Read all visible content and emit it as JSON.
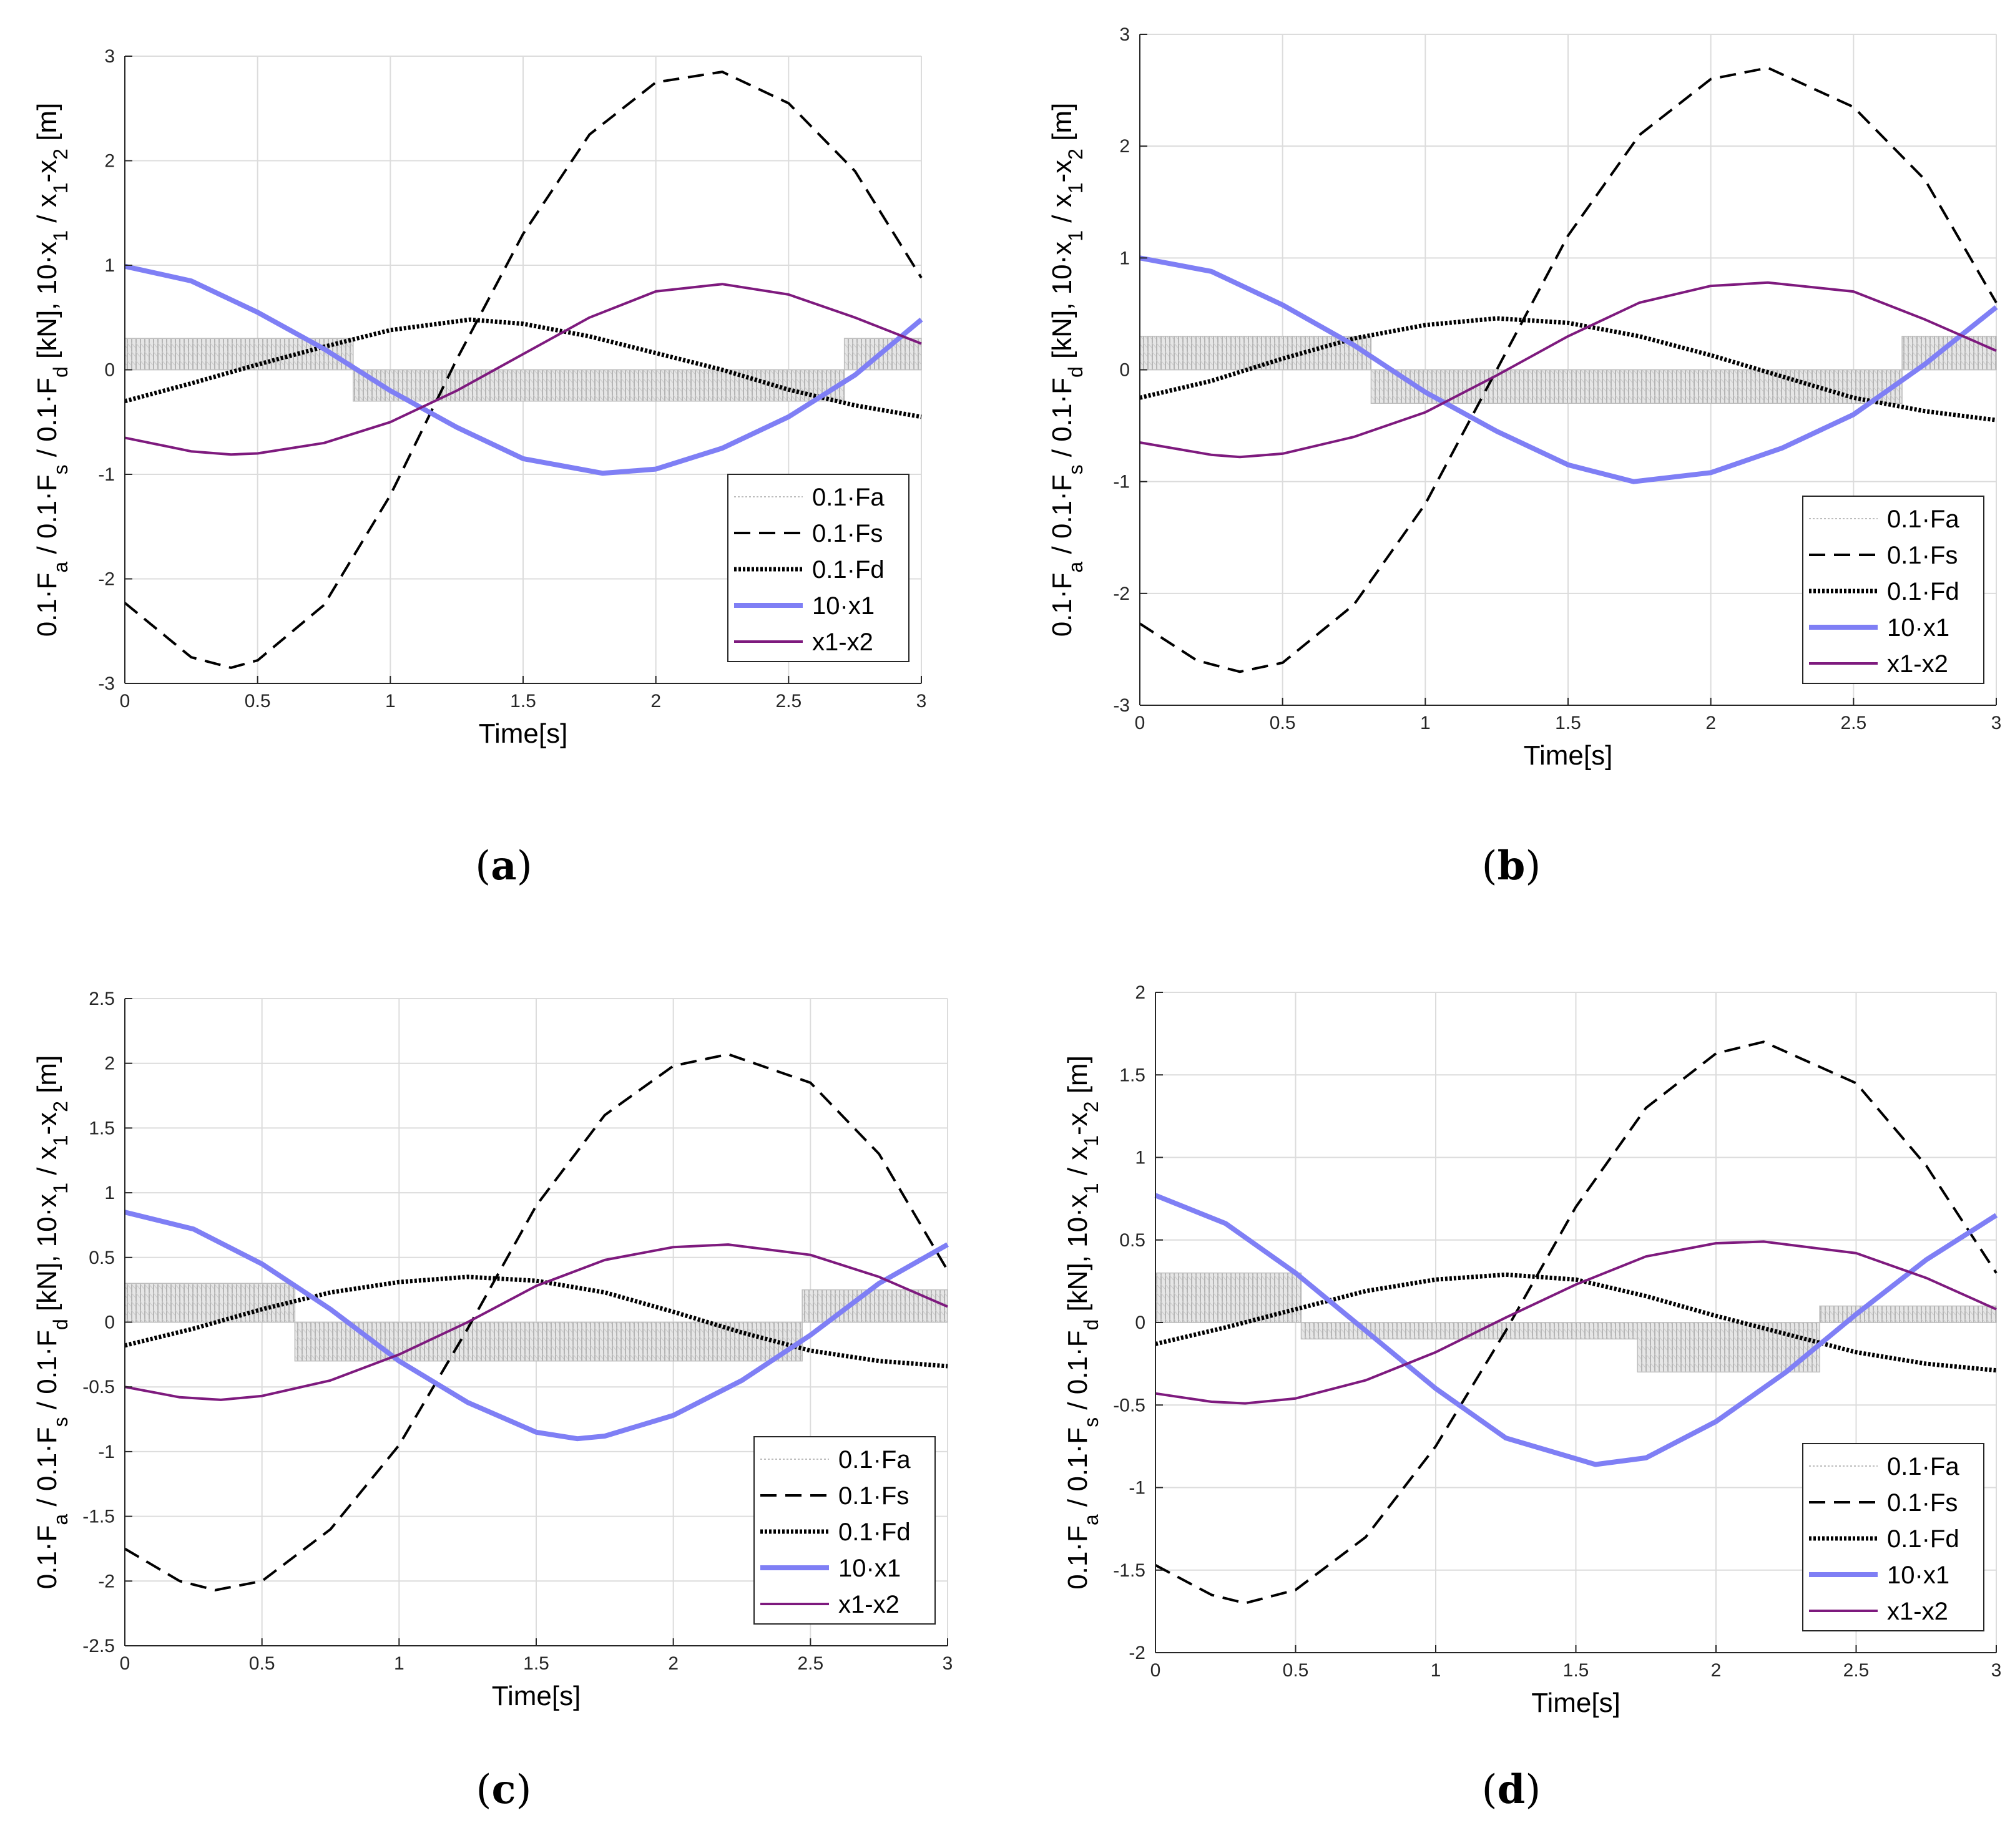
{
  "figure": {
    "panels": [
      {
        "id": "a",
        "caption_letter": "a"
      },
      {
        "id": "b",
        "caption_letter": "b"
      },
      {
        "id": "c",
        "caption_letter": "c"
      },
      {
        "id": "d",
        "caption_letter": "d"
      }
    ]
  },
  "legend_entries": [
    "0.1·Fa",
    "0.1·Fs",
    "0.1·Fd",
    "10·x1",
    "x1-x2"
  ],
  "colors": {
    "Fa": "#bdbdbd",
    "Fs": "#000000",
    "Fd": "#000000",
    "x1": "#7f7ff5",
    "x1x2": "#7e1a7e",
    "grid": "#dcdcdc"
  },
  "chart_data": [
    {
      "type": "line",
      "panel": "a",
      "xlabel": "Time[s]",
      "ylabel": "0.1·F_a / 0.1·F_s / 0.1·F_d [kN], 10·x_1 / x_1-x_2 [m]",
      "xlim": [
        0,
        3
      ],
      "ylim": [
        -3,
        3
      ],
      "xticks": [
        0,
        0.5,
        1,
        1.5,
        2,
        2.5,
        3
      ],
      "yticks": [
        -3,
        -2,
        -1,
        0,
        1,
        2,
        3
      ],
      "ytick_labels": [
        "-3",
        "-2",
        "-1",
        "0",
        "1",
        "2",
        "3"
      ],
      "grid": true,
      "legend_position": "lower-right",
      "series": [
        {
          "name": "0.1·Fs",
          "style": "dashed",
          "x": [
            0,
            0.25,
            0.4,
            0.5,
            0.75,
            1,
            1.25,
            1.5,
            1.75,
            2,
            2.25,
            2.5,
            2.75,
            3
          ],
          "y": [
            -2.23,
            -2.75,
            -2.85,
            -2.78,
            -2.25,
            -1.2,
            0.1,
            1.3,
            2.25,
            2.75,
            2.85,
            2.55,
            1.9,
            0.88
          ]
        },
        {
          "name": "0.1·Fd",
          "style": "dotted",
          "x": [
            0,
            0.25,
            0.5,
            0.75,
            1,
            1.3,
            1.5,
            1.75,
            2,
            2.25,
            2.5,
            2.75,
            3
          ],
          "y": [
            -0.3,
            -0.13,
            0.05,
            0.22,
            0.38,
            0.48,
            0.44,
            0.32,
            0.16,
            0.0,
            -0.19,
            -0.34,
            -0.45
          ]
        },
        {
          "name": "10·x1",
          "style": "solid-thick",
          "x": [
            0,
            0.25,
            0.5,
            0.75,
            1,
            1.25,
            1.5,
            1.8,
            2,
            2.25,
            2.5,
            2.75,
            3
          ],
          "y": [
            0.99,
            0.85,
            0.55,
            0.2,
            -0.2,
            -0.55,
            -0.85,
            -0.99,
            -0.95,
            -0.75,
            -0.45,
            -0.05,
            0.48
          ]
        },
        {
          "name": "x1-x2",
          "style": "solid",
          "x": [
            0,
            0.25,
            0.4,
            0.5,
            0.75,
            1,
            1.25,
            1.5,
            1.75,
            2,
            2.25,
            2.5,
            2.75,
            3
          ],
          "y": [
            -0.65,
            -0.78,
            -0.81,
            -0.8,
            -0.7,
            -0.5,
            -0.2,
            0.15,
            0.5,
            0.75,
            0.82,
            0.72,
            0.5,
            0.25
          ]
        }
      ],
      "fa_band": {
        "name": "0.1·Fa",
        "segments": [
          {
            "x": [
              0,
              0.86
            ],
            "low": 0.0,
            "high": 0.3
          },
          {
            "x": [
              0.86,
              2.71
            ],
            "low": -0.3,
            "high": 0.0
          },
          {
            "x": [
              2.71,
              3
            ],
            "low": 0.0,
            "high": 0.3
          }
        ]
      }
    },
    {
      "type": "line",
      "panel": "b",
      "xlabel": "Time[s]",
      "ylabel": "0.1·F_a / 0.1·F_s / 0.1·F_d [kN], 10·x_1 / x_1-x_2 [m]",
      "xlim": [
        0,
        3
      ],
      "ylim": [
        -3,
        3
      ],
      "xticks": [
        0,
        0.5,
        1,
        1.5,
        2,
        2.5,
        3
      ],
      "yticks": [
        -3,
        -2,
        -1,
        0,
        1,
        2,
        3
      ],
      "ytick_labels": [
        "-3",
        "-2",
        "-1",
        "0",
        "1",
        "2",
        "3"
      ],
      "grid": true,
      "legend_position": "lower-right",
      "series": [
        {
          "name": "0.1·Fs",
          "style": "dashed",
          "x": [
            0,
            0.2,
            0.35,
            0.5,
            0.75,
            1,
            1.25,
            1.5,
            1.75,
            2,
            2.2,
            2.5,
            2.75,
            3
          ],
          "y": [
            -2.27,
            -2.6,
            -2.7,
            -2.62,
            -2.1,
            -1.2,
            0.0,
            1.2,
            2.1,
            2.6,
            2.7,
            2.35,
            1.7,
            0.6
          ]
        },
        {
          "name": "0.1·Fd",
          "style": "dotted",
          "x": [
            0,
            0.25,
            0.5,
            0.75,
            1,
            1.25,
            1.5,
            1.75,
            2,
            2.25,
            2.5,
            2.75,
            3
          ],
          "y": [
            -0.25,
            -0.1,
            0.1,
            0.28,
            0.4,
            0.46,
            0.42,
            0.3,
            0.13,
            -0.06,
            -0.25,
            -0.37,
            -0.45
          ]
        },
        {
          "name": "10·x1",
          "style": "solid-thick",
          "x": [
            0,
            0.25,
            0.5,
            0.75,
            1,
            1.25,
            1.5,
            1.73,
            2,
            2.25,
            2.5,
            2.75,
            3
          ],
          "y": [
            1.0,
            0.88,
            0.58,
            0.22,
            -0.2,
            -0.55,
            -0.85,
            -1.0,
            -0.92,
            -0.7,
            -0.4,
            0.05,
            0.56
          ]
        },
        {
          "name": "x1-x2",
          "style": "solid",
          "x": [
            0,
            0.25,
            0.35,
            0.5,
            0.75,
            1,
            1.25,
            1.5,
            1.75,
            2,
            2.2,
            2.5,
            2.75,
            3
          ],
          "y": [
            -0.65,
            -0.76,
            -0.78,
            -0.75,
            -0.6,
            -0.38,
            -0.05,
            0.3,
            0.6,
            0.75,
            0.78,
            0.7,
            0.45,
            0.17
          ]
        }
      ],
      "fa_band": {
        "name": "0.1·Fa",
        "segments": [
          {
            "x": [
              0,
              0.81
            ],
            "low": 0.0,
            "high": 0.3
          },
          {
            "x": [
              0.81,
              2.67
            ],
            "low": -0.3,
            "high": 0.0
          },
          {
            "x": [
              2.67,
              3
            ],
            "low": 0.0,
            "high": 0.3
          }
        ]
      }
    },
    {
      "type": "line",
      "panel": "c",
      "xlabel": "Time[s]",
      "ylabel": "0.1·F_a / 0.1·F_s / 0.1·F_d [kN], 10·x_1 / x_1-x_2 [m]",
      "xlim": [
        0,
        3
      ],
      "ylim": [
        -2.5,
        2.5
      ],
      "xticks": [
        0,
        0.5,
        1,
        1.5,
        2,
        2.5,
        3
      ],
      "yticks": [
        -2.5,
        -2,
        -1.5,
        -1,
        -0.5,
        0,
        0.5,
        1,
        1.5,
        2,
        2.5
      ],
      "ytick_labels": [
        "-2.5",
        "-2",
        "-1.5",
        "-1",
        "-0.5",
        "0",
        "0.5",
        "1",
        "1.5",
        "2",
        "2.5"
      ],
      "grid": true,
      "legend_position": "lower-right",
      "series": [
        {
          "name": "0.1·Fs",
          "style": "dashed",
          "x": [
            0,
            0.2,
            0.33,
            0.5,
            0.75,
            1,
            1.25,
            1.5,
            1.75,
            2,
            2.2,
            2.5,
            2.75,
            3
          ],
          "y": [
            -1.75,
            -2.0,
            -2.07,
            -2.0,
            -1.6,
            -0.95,
            -0.05,
            0.9,
            1.6,
            1.98,
            2.07,
            1.85,
            1.3,
            0.4
          ]
        },
        {
          "name": "0.1·Fd",
          "style": "dotted",
          "x": [
            0,
            0.25,
            0.5,
            0.75,
            1,
            1.25,
            1.5,
            1.75,
            2,
            2.25,
            2.5,
            2.75,
            3
          ],
          "y": [
            -0.18,
            -0.05,
            0.1,
            0.23,
            0.31,
            0.35,
            0.32,
            0.23,
            0.08,
            -0.08,
            -0.22,
            -0.3,
            -0.34
          ]
        },
        {
          "name": "10·x1",
          "style": "solid-thick",
          "x": [
            0,
            0.25,
            0.5,
            0.75,
            1,
            1.25,
            1.5,
            1.65,
            1.75,
            2,
            2.25,
            2.5,
            2.75,
            3
          ],
          "y": [
            0.85,
            0.72,
            0.45,
            0.1,
            -0.3,
            -0.62,
            -0.85,
            -0.9,
            -0.88,
            -0.72,
            -0.45,
            -0.1,
            0.3,
            0.6
          ]
        },
        {
          "name": "x1-x2",
          "style": "solid",
          "x": [
            0,
            0.2,
            0.35,
            0.5,
            0.75,
            1,
            1.25,
            1.5,
            1.75,
            2,
            2.2,
            2.5,
            2.75,
            3
          ],
          "y": [
            -0.5,
            -0.58,
            -0.6,
            -0.57,
            -0.45,
            -0.25,
            0.0,
            0.28,
            0.48,
            0.58,
            0.6,
            0.52,
            0.35,
            0.12
          ]
        }
      ],
      "fa_band": {
        "name": "0.1·Fa",
        "segments": [
          {
            "x": [
              0,
              0.62
            ],
            "low": 0.0,
            "high": 0.3
          },
          {
            "x": [
              0.62,
              2.47
            ],
            "low": -0.3,
            "high": 0.0
          },
          {
            "x": [
              2.47,
              3
            ],
            "low": 0.0,
            "high": 0.25
          }
        ]
      }
    },
    {
      "type": "line",
      "panel": "d",
      "xlabel": "Time[s]",
      "ylabel": "0.1·F_a / 0.1·F_s / 0.1·F_d [kN], 10·x_1 / x_1-x_2 [m]",
      "xlim": [
        0,
        3
      ],
      "ylim": [
        -2,
        2
      ],
      "xticks": [
        0,
        0.5,
        1,
        1.5,
        2,
        2.5,
        3
      ],
      "yticks": [
        -2,
        -1.5,
        -1,
        -0.5,
        0,
        0.5,
        1,
        1.5,
        2
      ],
      "ytick_labels": [
        "-2",
        "-1.5",
        "-1",
        "-0.5",
        "0",
        "0.5",
        "1",
        "1.5",
        "2"
      ],
      "grid": true,
      "legend_position": "lower-right",
      "series": [
        {
          "name": "0.1·Fs",
          "style": "dashed",
          "x": [
            0,
            0.2,
            0.32,
            0.5,
            0.75,
            1,
            1.25,
            1.5,
            1.75,
            2,
            2.17,
            2.5,
            2.75,
            3
          ],
          "y": [
            -1.47,
            -1.65,
            -1.7,
            -1.62,
            -1.3,
            -0.75,
            -0.05,
            0.7,
            1.3,
            1.63,
            1.7,
            1.45,
            0.95,
            0.3
          ]
        },
        {
          "name": "0.1·Fd",
          "style": "dotted",
          "x": [
            0,
            0.25,
            0.5,
            0.75,
            1,
            1.25,
            1.5,
            1.75,
            2,
            2.25,
            2.5,
            2.75,
            3
          ],
          "y": [
            -0.13,
            -0.03,
            0.08,
            0.19,
            0.26,
            0.29,
            0.26,
            0.16,
            0.04,
            -0.07,
            -0.18,
            -0.25,
            -0.29
          ]
        },
        {
          "name": "10·x1",
          "style": "solid-thick",
          "x": [
            0,
            0.25,
            0.5,
            0.75,
            1,
            1.25,
            1.57,
            1.75,
            2,
            2.25,
            2.5,
            2.75,
            3
          ],
          "y": [
            0.77,
            0.6,
            0.3,
            -0.05,
            -0.4,
            -0.7,
            -0.86,
            -0.82,
            -0.6,
            -0.3,
            0.05,
            0.38,
            0.65
          ]
        },
        {
          "name": "x1-x2",
          "style": "solid",
          "x": [
            0,
            0.2,
            0.32,
            0.5,
            0.75,
            1,
            1.25,
            1.5,
            1.75,
            2,
            2.17,
            2.5,
            2.75,
            3
          ],
          "y": [
            -0.43,
            -0.48,
            -0.49,
            -0.46,
            -0.35,
            -0.18,
            0.03,
            0.23,
            0.4,
            0.48,
            0.49,
            0.42,
            0.27,
            0.08
          ]
        }
      ],
      "fa_band": {
        "name": "0.1·Fa",
        "segments": [
          {
            "x": [
              0,
              0.52
            ],
            "low": 0.0,
            "high": 0.3
          },
          {
            "x": [
              0.52,
              1.72
            ],
            "low": -0.1,
            "high": 0.0
          },
          {
            "x": [
              1.72,
              2.37
            ],
            "low": -0.3,
            "high": 0.0
          },
          {
            "x": [
              2.37,
              3
            ],
            "low": 0.0,
            "high": 0.1
          }
        ]
      }
    }
  ]
}
